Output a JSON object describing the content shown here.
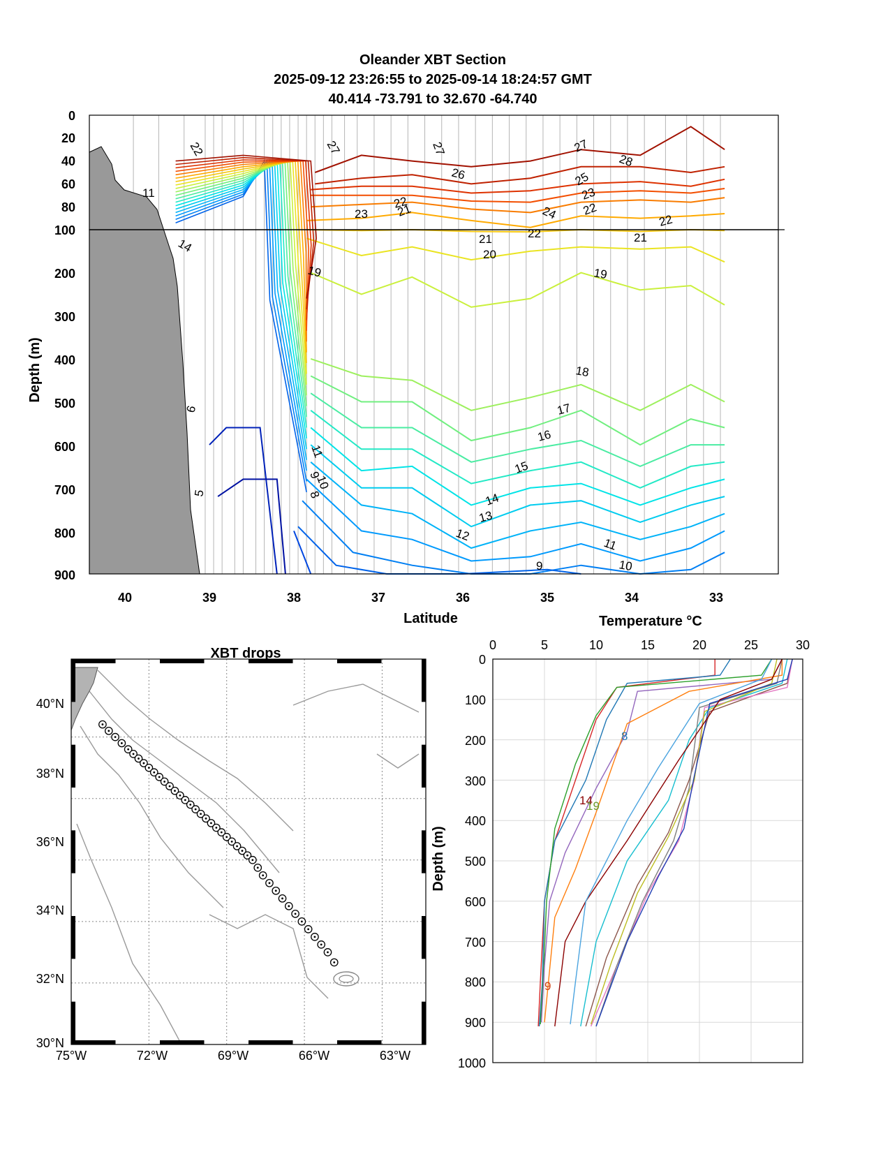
{
  "section": {
    "title_lines": [
      "Oleander XBT Section",
      "2025-09-12 23:26:55 to 2025-09-14 18:24:57 GMT",
      "40.414 -73.791 to 32.670 -64.740"
    ],
    "xlabel": "Latitude",
    "ylabel": "Depth (m)",
    "xticks": [
      "40",
      "39",
      "38",
      "37",
      "36",
      "35",
      "34",
      "33"
    ],
    "yticks_upper": [
      "0",
      "20",
      "40",
      "60",
      "80",
      "100"
    ],
    "yticks_lower": [
      "200",
      "300",
      "400",
      "500",
      "600",
      "700",
      "800",
      "900"
    ],
    "contour_labels": [
      "22",
      "27",
      "27",
      "26",
      "27",
      "28",
      "25",
      "23",
      "22",
      "22",
      "21",
      "23",
      "24",
      "22",
      "22",
      "21",
      "21",
      "20",
      "19",
      "19",
      "18",
      "17",
      "16",
      "15",
      "14",
      "13",
      "12",
      "11",
      "10",
      "9",
      "11",
      "10",
      "9",
      "8",
      "6",
      "5",
      "14",
      "11"
    ]
  },
  "map": {
    "title": "XBT drops",
    "lon_labels": [
      "75°W",
      "72°W",
      "69°W",
      "66°W",
      "63°W"
    ],
    "lat_labels": [
      "40°N",
      "38°N",
      "36°N",
      "34°N",
      "32°N",
      "30°N"
    ]
  },
  "profiles": {
    "xlabel": "Temperature °C",
    "ylabel": "Depth (m)",
    "xticks": [
      "0",
      "5",
      "10",
      "15",
      "20",
      "25",
      "30"
    ],
    "yticks": [
      "0",
      "100",
      "200",
      "300",
      "400",
      "500",
      "600",
      "700",
      "800",
      "900",
      "1000"
    ],
    "inline_labels": [
      "8",
      "14",
      "19",
      "9"
    ]
  },
  "chart_data": [
    {
      "type": "heatmap",
      "title": "Oleander XBT Section",
      "subtitle": "2025-09-12 23:26:55 to 2025-09-14 18:24:57 GMT; 40.414 -73.791 to 32.670 -64.740",
      "xlabel": "Latitude",
      "ylabel": "Depth (m)",
      "xlim": [
        40.4,
        32.6
      ],
      "ylim": [
        0,
        900
      ],
      "x_stations": [
        39.9,
        39.6,
        39.3,
        39.05,
        38.95,
        38.85,
        38.7,
        38.6,
        38.45,
        38.35,
        38.25,
        38.15,
        38.05,
        37.95,
        37.85,
        37.75,
        37.65,
        37.55,
        37.4,
        37.25,
        37.05,
        36.85,
        36.65,
        36.45,
        36.25,
        36.05,
        35.85,
        35.65,
        35.45,
        35.25,
        35.05,
        34.85,
        34.65,
        34.45,
        34.25,
        34.05,
        33.85,
        33.6,
        33.35,
        33.15,
        32.95
      ],
      "contours": [
        {
          "level": 27,
          "lat": [
            37.75,
            37.2,
            36.6,
            35.9,
            35.2,
            34.6,
            33.9,
            33.3,
            32.9
          ],
          "depth": [
            50,
            35,
            40,
            45,
            40,
            30,
            35,
            10,
            30
          ]
        },
        {
          "level": 26,
          "lat": [
            37.75,
            37.2,
            36.6,
            35.9,
            35.2,
            34.6,
            33.9,
            33.3,
            32.9
          ],
          "depth": [
            60,
            55,
            52,
            60,
            55,
            45,
            45,
            50,
            45
          ]
        },
        {
          "level": 25,
          "lat": [
            37.8,
            37.2,
            36.6,
            35.9,
            35.2,
            34.6,
            33.9,
            33.3,
            32.9
          ],
          "depth": [
            65,
            62,
            62,
            68,
            66,
            60,
            58,
            62,
            56
          ]
        },
        {
          "level": 24,
          "lat": [
            37.8,
            37.2,
            36.6,
            35.9,
            35.2,
            34.6,
            33.9,
            33.3,
            32.9
          ],
          "depth": [
            70,
            70,
            70,
            75,
            76,
            68,
            66,
            68,
            64
          ]
        },
        {
          "level": 23,
          "lat": [
            37.8,
            37.2,
            36.6,
            35.9,
            35.2,
            34.6,
            33.9,
            33.3,
            32.9
          ],
          "depth": [
            80,
            78,
            76,
            82,
            85,
            76,
            74,
            76,
            72
          ]
        },
        {
          "level": 22,
          "lat": [
            37.85,
            37.2,
            36.6,
            35.9,
            35.2,
            34.6,
            33.9,
            33.3,
            32.9
          ],
          "depth": [
            92,
            90,
            85,
            92,
            98,
            88,
            90,
            88,
            86
          ]
        },
        {
          "level": 21,
          "lat": [
            37.85,
            37.2,
            36.6,
            35.9,
            35.2,
            34.6,
            33.9,
            33.3,
            32.9
          ],
          "depth": [
            100,
            102,
            100,
            104,
            105,
            100,
            104,
            100,
            102
          ]
        },
        {
          "level": 20,
          "lat": [
            37.85,
            37.2,
            36.6,
            35.9,
            35.2,
            34.6,
            33.9,
            33.3,
            32.9
          ],
          "depth": [
            120,
            160,
            140,
            170,
            150,
            140,
            145,
            140,
            175
          ]
        },
        {
          "level": 19,
          "lat": [
            37.8,
            37.2,
            36.6,
            35.9,
            35.2,
            34.6,
            33.9,
            33.3,
            32.9
          ],
          "depth": [
            200,
            250,
            210,
            280,
            260,
            200,
            240,
            230,
            275
          ]
        },
        {
          "level": 18,
          "lat": [
            37.8,
            37.2,
            36.6,
            35.9,
            35.2,
            34.6,
            33.9,
            33.3,
            32.9
          ],
          "depth": [
            400,
            440,
            450,
            520,
            490,
            460,
            520,
            460,
            500
          ]
        },
        {
          "level": 17,
          "lat": [
            37.8,
            37.2,
            36.6,
            35.9,
            35.2,
            34.6,
            33.9,
            33.3,
            32.9
          ],
          "depth": [
            440,
            500,
            500,
            590,
            560,
            520,
            600,
            540,
            560
          ]
        },
        {
          "level": 16,
          "lat": [
            37.8,
            37.2,
            36.6,
            35.9,
            35.2,
            34.6,
            33.9,
            33.3,
            32.9
          ],
          "depth": [
            480,
            560,
            560,
            640,
            610,
            590,
            650,
            600,
            600
          ]
        },
        {
          "level": 15,
          "lat": [
            37.8,
            37.2,
            36.6,
            35.9,
            35.2,
            34.6,
            33.9,
            33.3,
            32.9
          ],
          "depth": [
            520,
            610,
            610,
            690,
            660,
            640,
            700,
            650,
            640
          ]
        },
        {
          "level": 14,
          "lat": [
            37.8,
            37.2,
            36.6,
            35.9,
            35.2,
            34.6,
            33.9,
            33.3,
            32.9
          ],
          "depth": [
            560,
            660,
            650,
            740,
            700,
            690,
            740,
            700,
            680
          ]
        },
        {
          "level": 13,
          "lat": [
            37.8,
            37.2,
            36.6,
            35.9,
            35.2,
            34.6,
            33.9,
            33.3,
            32.9
          ],
          "depth": [
            600,
            700,
            700,
            790,
            740,
            730,
            780,
            740,
            720
          ]
        },
        {
          "level": 12,
          "lat": [
            37.8,
            37.2,
            36.6,
            35.9,
            35.2,
            34.6,
            33.9,
            33.3,
            32.9
          ],
          "depth": [
            640,
            740,
            760,
            840,
            800,
            780,
            820,
            790,
            760
          ]
        },
        {
          "level": 11,
          "lat": [
            37.85,
            37.2,
            36.6,
            35.9,
            35.2,
            34.6,
            33.9,
            33.3,
            32.9
          ],
          "depth": [
            680,
            800,
            820,
            870,
            860,
            830,
            870,
            840,
            800
          ]
        },
        {
          "level": 10,
          "lat": [
            37.9,
            37.3,
            36.6,
            35.9,
            35.2,
            34.6,
            33.9,
            33.3,
            32.9
          ],
          "depth": [
            730,
            850,
            880,
            900,
            900,
            880,
            900,
            890,
            850
          ]
        },
        {
          "level": 9,
          "lat": [
            37.95,
            37.5,
            36.9,
            36.0,
            35.0,
            34.6
          ],
          "depth": [
            790,
            880,
            900,
            900,
            890,
            900
          ]
        },
        {
          "level": 8,
          "lat": [
            38.0,
            37.8
          ],
          "depth": [
            800,
            900
          ]
        },
        {
          "level": 6,
          "lat": [
            39.0,
            38.8,
            38.4,
            38.2
          ],
          "depth": [
            600,
            560,
            560,
            900
          ]
        },
        {
          "level": 5,
          "lat": [
            38.9,
            38.6,
            38.2,
            38.1
          ],
          "depth": [
            720,
            680,
            680,
            900
          ]
        }
      ]
    },
    {
      "type": "scatter",
      "title": "XBT drops",
      "xlabel": "",
      "ylabel": "",
      "xlim": [
        -75,
        -62
      ],
      "ylim": [
        30,
        41
      ],
      "x": [
        -73.79,
        -73.55,
        -73.3,
        -73.05,
        -72.8,
        -72.6,
        -72.4,
        -72.2,
        -72.0,
        -71.8,
        -71.6,
        -71.4,
        -71.2,
        -71.0,
        -70.8,
        -70.6,
        -70.4,
        -70.2,
        -70.0,
        -69.8,
        -69.6,
        -69.4,
        -69.2,
        -69.0,
        -68.8,
        -68.6,
        -68.4,
        -68.2,
        -68.0,
        -67.8,
        -67.6,
        -67.35,
        -67.1,
        -66.85,
        -66.6,
        -66.35,
        -66.1,
        -65.85,
        -65.6,
        -65.35,
        -65.1,
        -64.85
      ],
      "y": [
        40.41,
        40.2,
        40.0,
        39.8,
        39.6,
        39.45,
        39.3,
        39.15,
        39.0,
        38.85,
        38.7,
        38.55,
        38.4,
        38.25,
        38.1,
        37.95,
        37.8,
        37.65,
        37.5,
        37.35,
        37.2,
        37.05,
        36.9,
        36.75,
        36.6,
        36.45,
        36.3,
        36.15,
        36.0,
        35.75,
        35.5,
        35.25,
        35.0,
        34.75,
        34.5,
        34.25,
        34.0,
        33.75,
        33.5,
        33.25,
        33.0,
        32.67
      ]
    },
    {
      "type": "line",
      "title": "",
      "xlabel": "Temperature °C",
      "ylabel": "Depth (m)",
      "xlim": [
        0,
        30
      ],
      "ylim": [
        0,
        1000
      ],
      "series": [
        {
          "values_x": [
            21.5,
            21.5,
            12,
            10,
            8,
            6,
            5,
            4.6,
            4.4
          ],
          "depth": [
            0,
            40,
            70,
            150,
            300,
            450,
            600,
            800,
            910
          ]
        },
        {
          "values_x": [
            23,
            22,
            13,
            11,
            9,
            6,
            5,
            4.8,
            4.5
          ],
          "depth": [
            0,
            40,
            60,
            150,
            300,
            450,
            600,
            800,
            910
          ]
        },
        {
          "values_x": [
            27,
            26,
            12,
            10,
            8,
            6,
            5.2,
            4.9,
            4.6
          ],
          "depth": [
            0,
            40,
            70,
            140,
            260,
            420,
            600,
            780,
            905
          ]
        },
        {
          "values_x": [
            28,
            27,
            14,
            13,
            10,
            7,
            5.5,
            5,
            4.7
          ],
          "depth": [
            0,
            50,
            80,
            180,
            320,
            480,
            600,
            760,
            900
          ]
        },
        {
          "values_x": [
            28,
            28,
            19,
            13,
            10,
            8,
            6,
            5
          ],
          "depth": [
            0,
            40,
            80,
            160,
            380,
            520,
            640,
            900
          ]
        },
        {
          "values_x": [
            28.5,
            28,
            21,
            19,
            17,
            13,
            10,
            8.5
          ],
          "depth": [
            0,
            60,
            120,
            200,
            350,
            500,
            700,
            910
          ]
        },
        {
          "values_x": [
            29,
            28.5,
            21,
            19,
            17,
            14,
            11,
            9
          ],
          "depth": [
            0,
            60,
            130,
            300,
            430,
            560,
            740,
            910
          ]
        },
        {
          "values_x": [
            29,
            28.5,
            20.5,
            19.5,
            18,
            15,
            12,
            9.5
          ],
          "depth": [
            0,
            70,
            120,
            300,
            450,
            580,
            760,
            910
          ]
        },
        {
          "values_x": [
            28,
            27.5,
            20,
            19,
            17.5,
            14.5,
            12,
            10
          ],
          "depth": [
            0,
            60,
            120,
            320,
            450,
            600,
            760,
            910
          ]
        },
        {
          "values_x": [
            27.5,
            27,
            20.5,
            19.5,
            17,
            14,
            11.5,
            9.5
          ],
          "depth": [
            0,
            60,
            130,
            300,
            440,
            580,
            750,
            905
          ]
        },
        {
          "values_x": [
            29,
            28.5,
            21,
            19.5,
            18.5,
            16,
            13,
            10
          ],
          "depth": [
            0,
            50,
            110,
            290,
            420,
            540,
            700,
            910
          ]
        },
        {
          "values_x": [
            28,
            27,
            22,
            18,
            13,
            9,
            7,
            6
          ],
          "depth": [
            0,
            50,
            100,
            250,
            450,
            600,
            700,
            910
          ]
        },
        {
          "values_x": [
            27,
            26,
            20,
            16,
            13,
            9,
            8,
            7.5
          ],
          "depth": [
            0,
            50,
            110,
            270,
            400,
            600,
            800,
            905
          ]
        }
      ]
    }
  ],
  "colors": {
    "land": "#999999",
    "grid": "#bdbdbd",
    "station_line": "#b0b0b0"
  }
}
